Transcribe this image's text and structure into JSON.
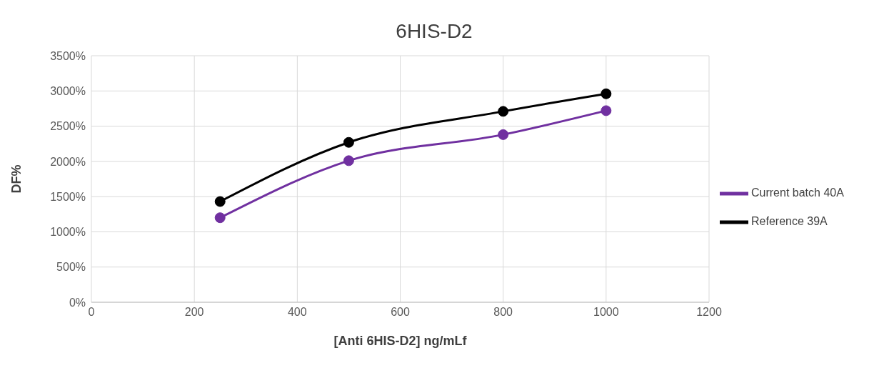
{
  "chart_data": {
    "type": "line",
    "title": "6HIS-D2",
    "xlabel": "[Anti 6HIS-D2] ng/mLf",
    "ylabel": "DF%",
    "x": [
      250,
      500,
      800,
      1000
    ],
    "series": [
      {
        "name": "Reference 39A",
        "color": "#000000",
        "values": [
          1430,
          2270,
          2710,
          2960
        ]
      },
      {
        "name": "Current batch 40A",
        "color": "#7030a0",
        "values": [
          1200,
          2010,
          2380,
          2720
        ]
      }
    ],
    "xlim": [
      0,
      1200
    ],
    "xticks": [
      0,
      200,
      400,
      600,
      800,
      1000,
      1200
    ],
    "ylim": [
      0,
      3500
    ],
    "yticks": [
      {
        "value": 0,
        "label": "0%"
      },
      {
        "value": 500,
        "label": "500%"
      },
      {
        "value": 1000,
        "label": "1000%"
      },
      {
        "value": 1500,
        "label": "1500%"
      },
      {
        "value": 2000,
        "label": "2000%"
      },
      {
        "value": 2500,
        "label": "2500%"
      },
      {
        "value": 3000,
        "label": "3000%"
      },
      {
        "value": 3500,
        "label": "3500%"
      }
    ],
    "grid": true,
    "legend": "right",
    "marker": "circle",
    "line_style": "solid"
  }
}
